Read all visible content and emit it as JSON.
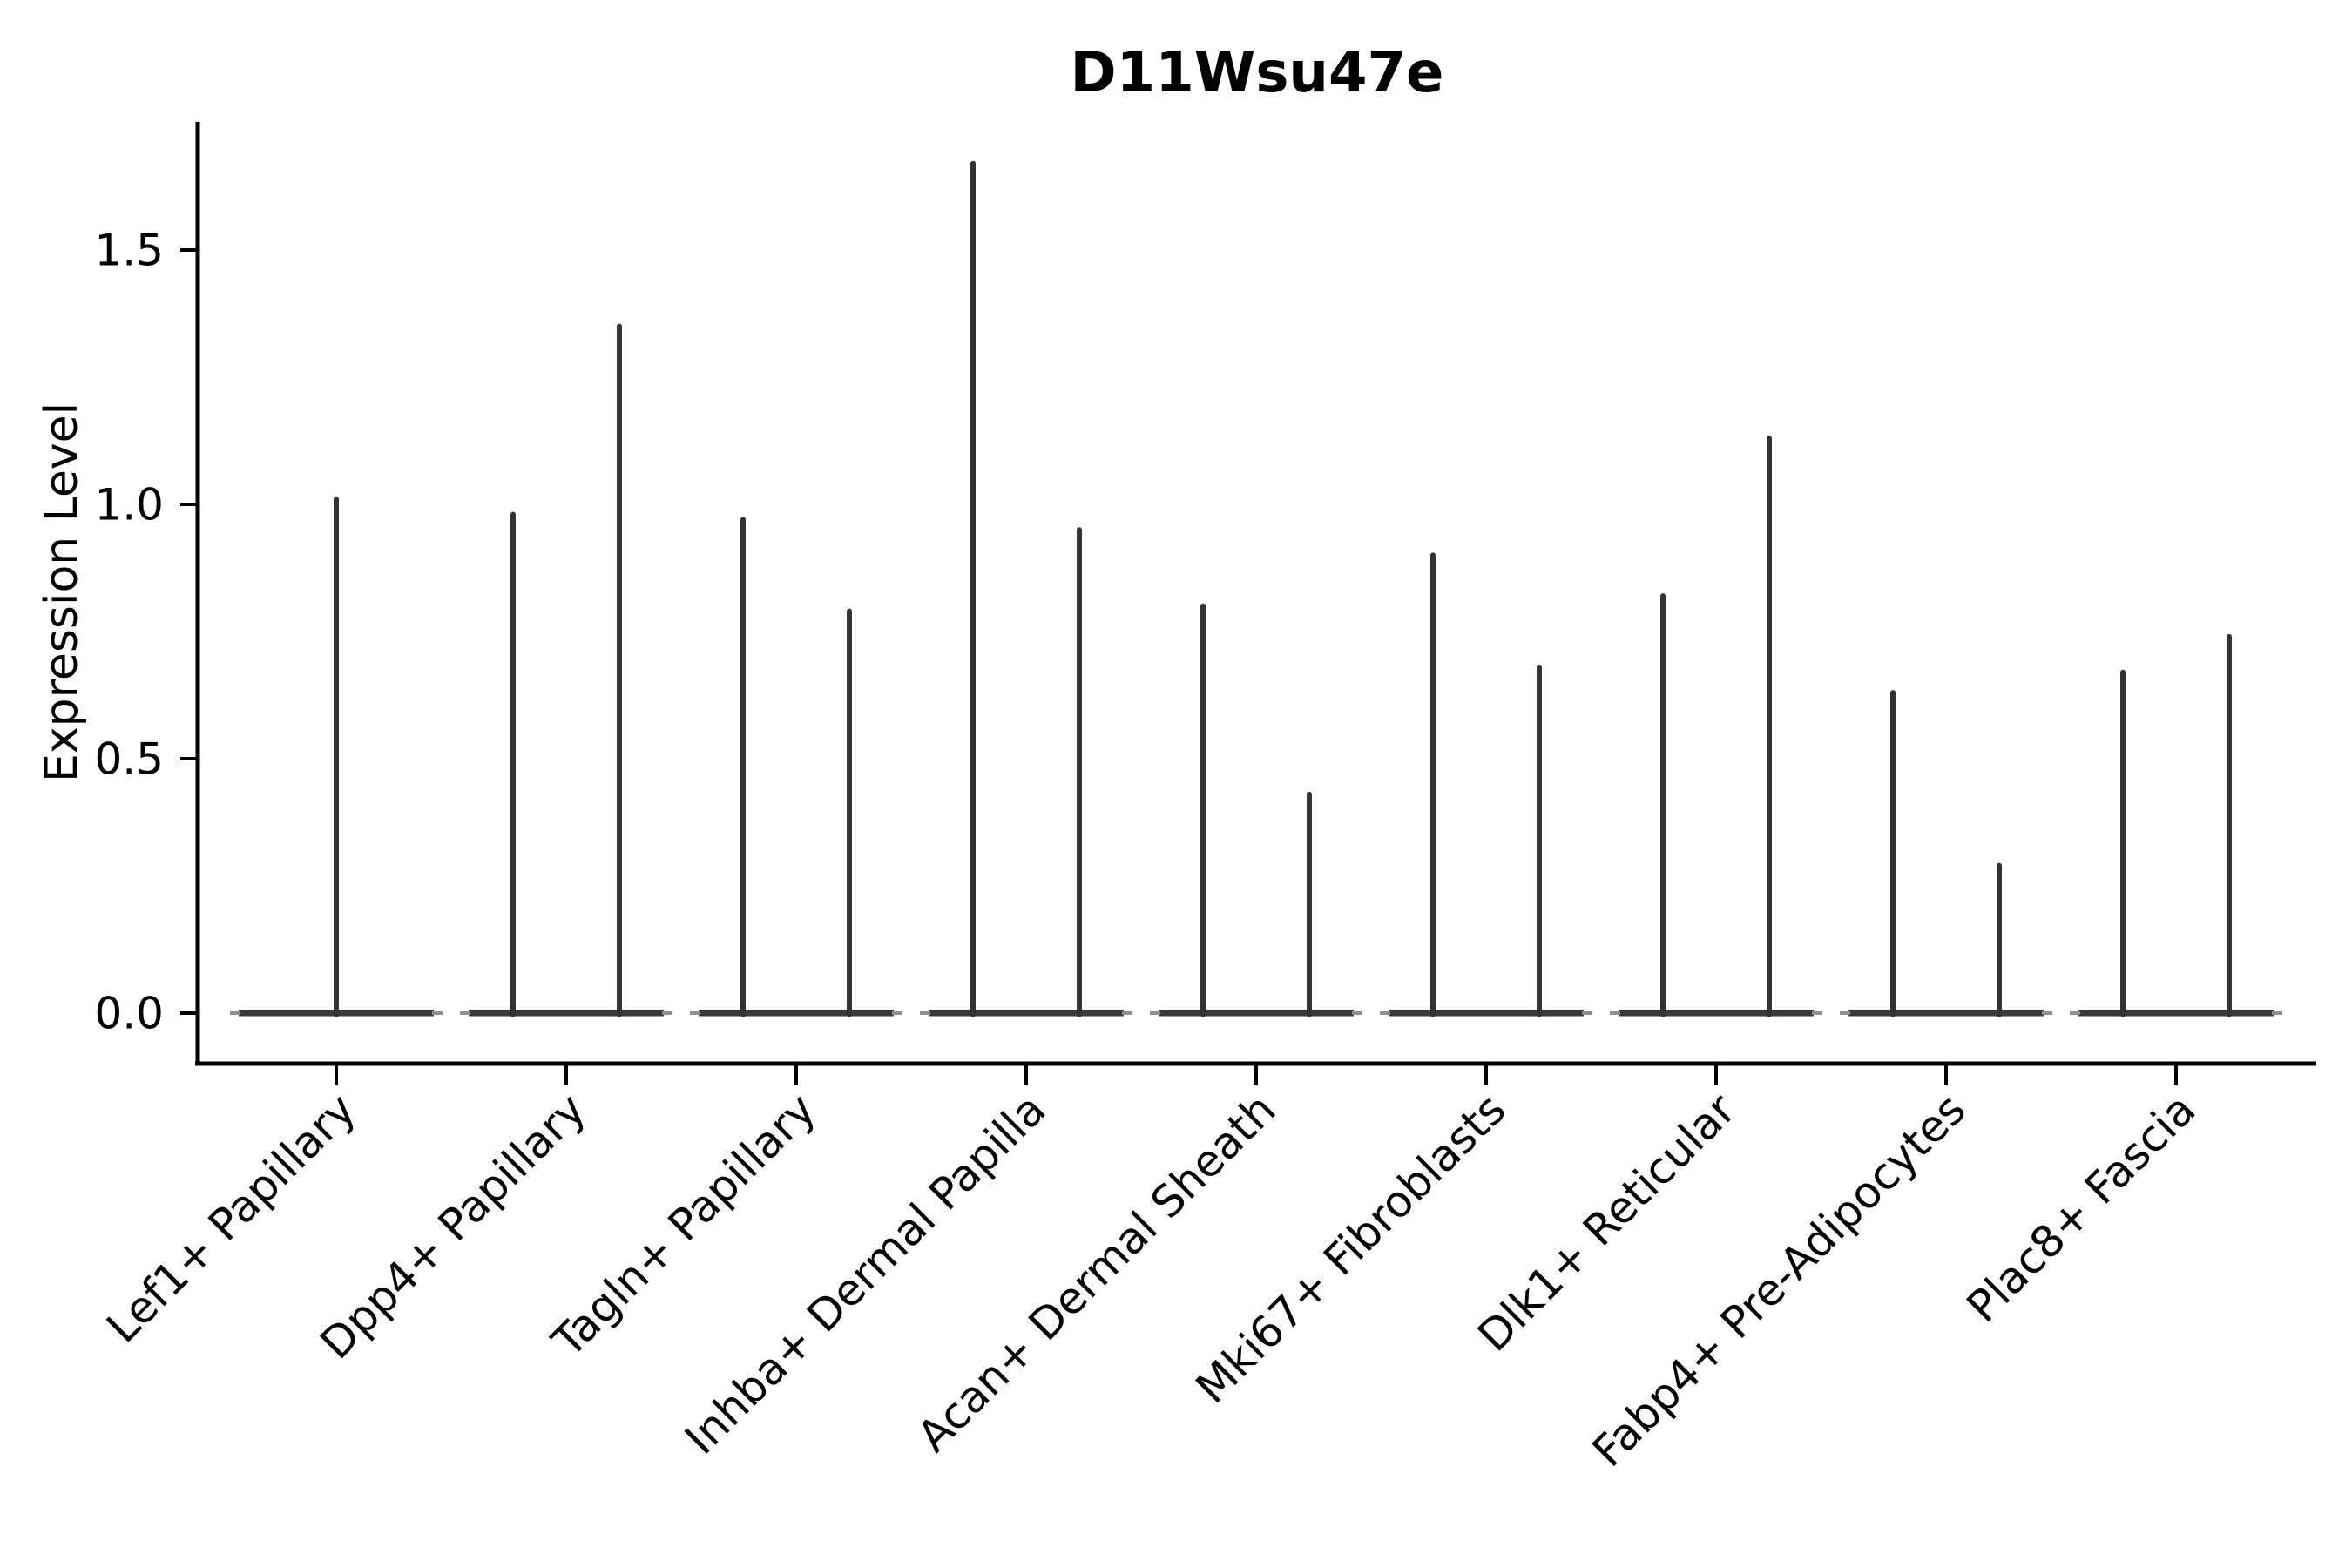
{
  "chart_data": {
    "type": "violin",
    "title": "D11Wsu47e",
    "xlabel": "",
    "ylabel": "Expression Level",
    "yticks": [
      0.0,
      0.5,
      1.0,
      1.5
    ],
    "ytick_labels": [
      "0.0",
      "0.5",
      "1.0",
      "1.5"
    ],
    "ylim": [
      -0.1,
      1.76
    ],
    "grid": false,
    "legend": null,
    "categories": [
      "Lef1+ Papillary",
      "Dpp4+ Papillary",
      "Tagln+ Papillary",
      "Inhba+ Dermal Papilla",
      "Acan+ Dermal Sheath",
      "Mki67+ Fibroblasts",
      "Dlk1+ Reticular",
      "Fabp4+ Pre-Adipocytes",
      "Plac8+ Fascia"
    ],
    "groups": [
      {
        "category": "Lef1+ Papillary",
        "violin_maxima": [
          1.01
        ]
      },
      {
        "category": "Dpp4+ Papillary",
        "violin_maxima": [
          0.98,
          1.35
        ]
      },
      {
        "category": "Tagln+ Papillary",
        "violin_maxima": [
          0.97,
          0.79
        ]
      },
      {
        "category": "Inhba+ Dermal Papilla",
        "violin_maxima": [
          1.67,
          0.95
        ]
      },
      {
        "category": "Acan+ Dermal Sheath",
        "violin_maxima": [
          0.8,
          0.43
        ]
      },
      {
        "category": "Mki67+ Fibroblasts",
        "violin_maxima": [
          0.9,
          0.68
        ]
      },
      {
        "category": "Dlk1+ Reticular",
        "violin_maxima": [
          0.82,
          1.13
        ]
      },
      {
        "category": "Fabp4+ Pre-Adipocytes",
        "violin_maxima": [
          0.63,
          0.29
        ]
      },
      {
        "category": "Plac8+ Fascia",
        "violin_maxima": [
          0.67,
          0.74
        ]
      }
    ],
    "colors": {
      "violin_stroke": "#333333",
      "axis": "#000000",
      "text": "#000000",
      "background": "#ffffff"
    }
  }
}
